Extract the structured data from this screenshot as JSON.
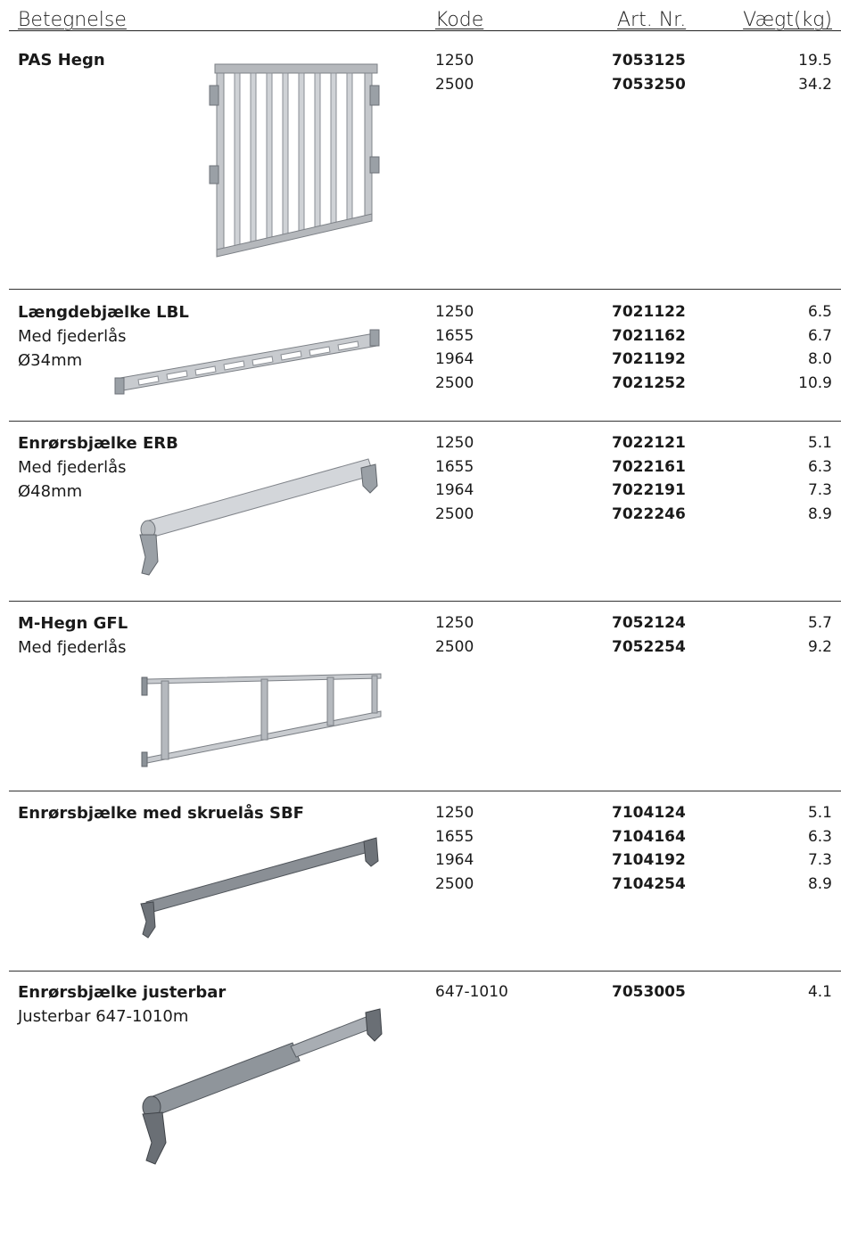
{
  "header": {
    "betegnelse": "Betegnelse",
    "kode": "Kode",
    "art_nr": "Art. Nr.",
    "vaegt": "Vægt(kg)"
  },
  "products": [
    {
      "name": "PAS Hegn",
      "lines": [],
      "image": "fence-panel-illustration",
      "rows": [
        {
          "kode": "1250",
          "art": "7053125",
          "vaegt": "19.5"
        },
        {
          "kode": "2500",
          "art": "7053250",
          "vaegt": "34.2"
        }
      ]
    },
    {
      "name": "Længdebjælke LBL",
      "lines": [
        "Med fjederlås",
        "Ø34mm"
      ],
      "image": "ledger-beam-illustration",
      "rows": [
        {
          "kode": "1250",
          "art": "7021122",
          "vaegt": "6.5"
        },
        {
          "kode": "1655",
          "art": "7021162",
          "vaegt": "6.7"
        },
        {
          "kode": "1964",
          "art": "7021192",
          "vaegt": "8.0"
        },
        {
          "kode": "2500",
          "art": "7021252",
          "vaegt": "10.9"
        }
      ]
    },
    {
      "name": "Enrørsbjælke ERB",
      "lines": [
        "Med fjederlås",
        "Ø48mm"
      ],
      "image": "single-tube-beam-illustration",
      "rows": [
        {
          "kode": "1250",
          "art": "7022121",
          "vaegt": "5.1"
        },
        {
          "kode": "1655",
          "art": "7022161",
          "vaegt": "6.3"
        },
        {
          "kode": "1964",
          "art": "7022191",
          "vaegt": "7.3"
        },
        {
          "kode": "2500",
          "art": "7022246",
          "vaegt": "8.9"
        }
      ]
    },
    {
      "name": "M-Hegn GFL",
      "lines": [
        "Med fjederlås"
      ],
      "image": "m-fence-illustration",
      "rows": [
        {
          "kode": "1250",
          "art": "7052124",
          "vaegt": "5.7"
        },
        {
          "kode": "2500",
          "art": "7052254",
          "vaegt": "9.2"
        }
      ]
    },
    {
      "name": "Enrørsbjælke med skruelås SBF",
      "lines": [],
      "image": "screw-lock-beam-illustration",
      "rows": [
        {
          "kode": "1250",
          "art": "7104124",
          "vaegt": "5.1"
        },
        {
          "kode": "1655",
          "art": "7104164",
          "vaegt": "6.3"
        },
        {
          "kode": "1964",
          "art": "7104192",
          "vaegt": "7.3"
        },
        {
          "kode": "2500",
          "art": "7104254",
          "vaegt": "8.9"
        }
      ]
    },
    {
      "name": "Enrørsbjælke justerbar",
      "lines": [
        "Justerbar 647-1010m"
      ],
      "image": "adjustable-beam-illustration",
      "rows": [
        {
          "kode": "647-1010",
          "art": "7053005",
          "vaegt": "4.1"
        }
      ]
    }
  ]
}
